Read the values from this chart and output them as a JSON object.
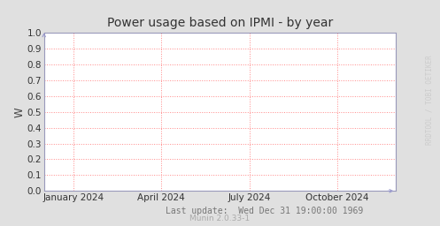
{
  "title": "Power usage based on IPMI - by year",
  "ylabel": "W",
  "ylim": [
    0.0,
    1.0
  ],
  "yticks": [
    0.0,
    0.1,
    0.2,
    0.3,
    0.4,
    0.5,
    0.6,
    0.7,
    0.8,
    0.9,
    1.0
  ],
  "xtick_labels": [
    "January 2024",
    "April 2024",
    "July 2024",
    "October 2024"
  ],
  "xtick_positions": [
    0.083,
    0.333,
    0.583,
    0.833
  ],
  "footer_text": "Last update:  Wed Dec 31 19:00:00 1969",
  "munin_text": "Munin 2.0.33-1",
  "watermark": "RRDTOOL / TOBI OETIKER",
  "bg_color": "#e0e0e0",
  "plot_bg_color": "#ffffff",
  "grid_color": "#ff8888",
  "border_color": "#9999bb",
  "title_color": "#333333",
  "ylabel_color": "#444444",
  "tick_color": "#333333",
  "footer_color": "#777777",
  "munin_color": "#aaaaaa",
  "watermark_color": "#cccccc",
  "arrow_color": "#9999cc",
  "title_fontsize": 10,
  "axis_fontsize": 7.5,
  "footer_fontsize": 7,
  "munin_fontsize": 6.5,
  "watermark_fontsize": 5.5
}
